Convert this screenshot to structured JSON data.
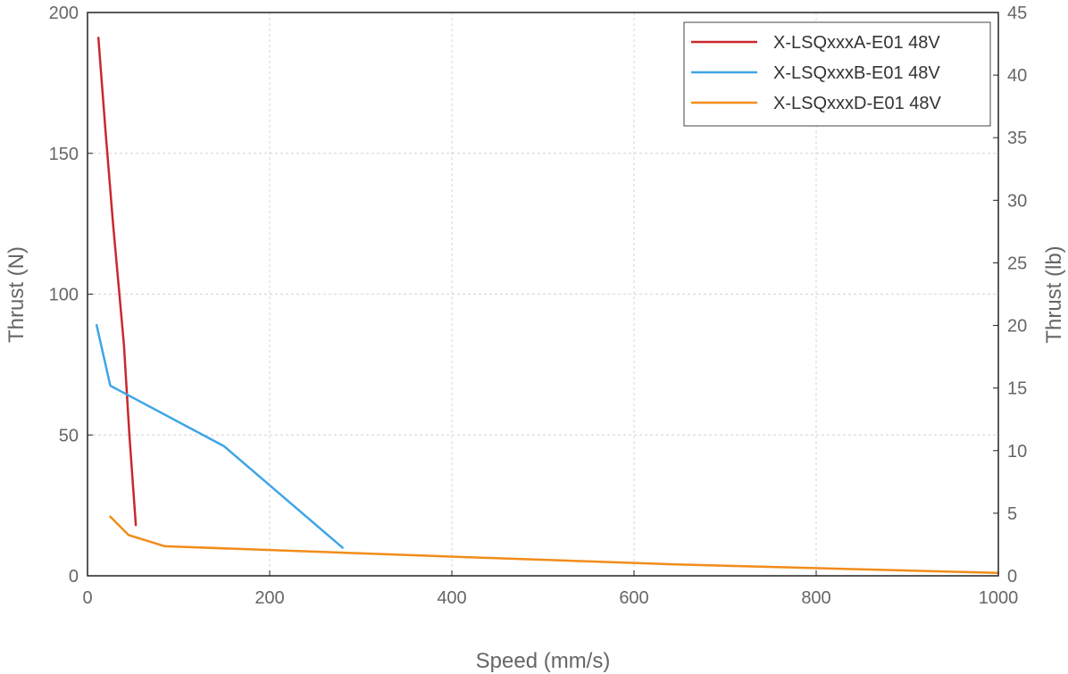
{
  "chart_data": {
    "type": "line",
    "title": "",
    "xlabel": "Speed (mm/s)",
    "ylabel": "Thrust (N)",
    "y2label": "Thrust (lb)",
    "xlim": [
      0,
      1000
    ],
    "ylim": [
      0,
      200
    ],
    "y2lim": [
      0,
      45
    ],
    "xticks": [
      0,
      200,
      400,
      600,
      800,
      1000
    ],
    "yticks": [
      0,
      50,
      100,
      150,
      200
    ],
    "y2ticks": [
      0,
      5,
      10,
      15,
      20,
      25,
      30,
      35,
      40,
      45
    ],
    "grid": true,
    "legend_position": "top-right",
    "series": [
      {
        "name": "X-LSQxxxA-E01 48V",
        "color": "#c8282d",
        "x": [
          12,
          15,
          20,
          28,
          35,
          40,
          46,
          53
        ],
        "y": [
          191,
          178,
          157,
          125,
          100,
          82,
          50,
          18
        ]
      },
      {
        "name": "X-LSQxxxB-E01 48V",
        "color": "#3ea5e8",
        "x": [
          10,
          25,
          150,
          280
        ],
        "y": [
          89,
          67.5,
          46,
          10
        ]
      },
      {
        "name": "X-LSQxxxD-E01 48V",
        "color": "#f28c1a",
        "x": [
          25,
          45,
          85,
          400,
          650,
          1000
        ],
        "y": [
          21,
          14.5,
          10.5,
          6.8,
          4,
          1
        ]
      }
    ]
  }
}
